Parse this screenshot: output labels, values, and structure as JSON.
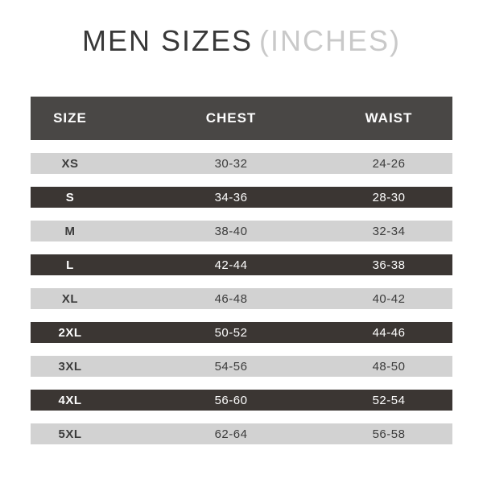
{
  "title": {
    "main": "MEN SIZES",
    "suffix": "(INCHES)"
  },
  "chart_data": {
    "type": "table",
    "title": "MEN SIZES (INCHES)",
    "columns": [
      "SIZE",
      "CHEST",
      "WAIST"
    ],
    "rows": [
      [
        "XS",
        "30-32",
        "24-26"
      ],
      [
        "S",
        "34-36",
        "28-30"
      ],
      [
        "M",
        "38-40",
        "32-34"
      ],
      [
        "L",
        "42-44",
        "36-38"
      ],
      [
        "XL",
        "46-48",
        "40-42"
      ],
      [
        "2XL",
        "50-52",
        "44-46"
      ],
      [
        "3XL",
        "54-56",
        "48-50"
      ],
      [
        "4XL",
        "56-60",
        "52-54"
      ],
      [
        "5XL",
        "62-64",
        "56-58"
      ]
    ],
    "row_styles": [
      "light",
      "dark",
      "light",
      "dark",
      "light",
      "dark",
      "light",
      "dark",
      "light"
    ],
    "layout_hints": {
      "header_alignment": "center",
      "cell_alignment": "center",
      "striping": "alternating light/dark starting with light"
    }
  },
  "colors": {
    "page_bg": "#ffffff",
    "title_color": "#383838",
    "title_muted_color": "#c9c9c9",
    "header_bg": "#494745",
    "header_text": "#fdfdfd",
    "dark_row_bg": "#3b3633",
    "dark_row_text": "#fdfdfd",
    "light_row_bg": "#d2d2d2",
    "light_row_text": "#3c3c3c"
  }
}
